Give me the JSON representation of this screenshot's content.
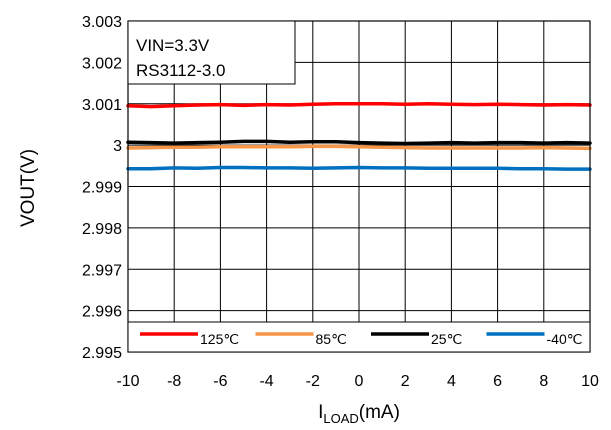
{
  "chart_data": {
    "type": "line",
    "xlabel": "I",
    "xlabel_sub": "LOAD",
    "xlabel_unit": "(mA)",
    "ylabel": "VOUT(V)",
    "xlim": [
      -10,
      10
    ],
    "ylim": [
      2.995,
      3.003
    ],
    "x_ticks": [
      -10,
      -8,
      -6,
      -4,
      -2,
      0,
      2,
      4,
      6,
      8,
      10
    ],
    "y_tick_values": [
      2.995,
      2.996,
      2.997,
      2.998,
      2.999,
      3.0,
      3.001,
      3.002,
      3.003
    ],
    "y_tick_labels": [
      "2.995",
      "2.996",
      "2.997",
      "2.998",
      "2.999",
      "3",
      "3.001",
      "3.002",
      "3.003"
    ],
    "grid": true,
    "annotation": [
      "VIN=3.3V",
      "RS3112-3.0"
    ],
    "legend_position": "bottom",
    "series": [
      {
        "name": "125℃",
        "color": "#ff0000",
        "x": [
          -10,
          -9,
          -8,
          -7,
          -6,
          -5,
          -4,
          -3,
          -2,
          -1,
          0,
          1,
          2,
          3,
          4,
          5,
          6,
          7,
          8,
          9,
          10
        ],
        "y": [
          3.00095,
          3.00093,
          3.00095,
          3.00097,
          3.00098,
          3.00096,
          3.00098,
          3.00097,
          3.00099,
          3.001,
          3.001,
          3.001,
          3.00099,
          3.001,
          3.00099,
          3.00098,
          3.00099,
          3.00098,
          3.00097,
          3.00098,
          3.00097
        ]
      },
      {
        "name": "85℃",
        "color": "#f79646",
        "x": [
          -10,
          -9,
          -8,
          -7,
          -6,
          -5,
          -4,
          -3,
          -2,
          -1,
          0,
          1,
          2,
          3,
          4,
          5,
          6,
          7,
          8,
          9,
          10
        ],
        "y": [
          2.99993,
          2.99994,
          2.99995,
          2.99995,
          2.99996,
          2.99996,
          2.99996,
          2.99996,
          2.99997,
          2.99997,
          2.99996,
          2.99995,
          2.99994,
          2.99993,
          2.99993,
          2.99993,
          2.99993,
          2.99993,
          2.99994,
          2.99993,
          2.99992
        ]
      },
      {
        "name": "25℃",
        "color": "#000000",
        "x": [
          -10,
          -9,
          -8,
          -7,
          -6,
          -5,
          -4,
          -3,
          -2,
          -1,
          0,
          1,
          2,
          3,
          4,
          5,
          6,
          7,
          8,
          9,
          10
        ],
        "y": [
          3.00007,
          3.00006,
          3.00005,
          3.00006,
          3.00007,
          3.00009,
          3.00009,
          3.00007,
          3.00008,
          3.00008,
          3.00006,
          3.00005,
          3.00004,
          3.00005,
          3.00006,
          3.00005,
          3.00006,
          3.00006,
          3.00005,
          3.00006,
          3.00005
        ]
      },
      {
        "name": "-40℃",
        "color": "#0070c0",
        "x": [
          -10,
          -9,
          -8,
          -7,
          -6,
          -5,
          -4,
          -3,
          -2,
          -1,
          0,
          1,
          2,
          3,
          4,
          5,
          6,
          7,
          8,
          9,
          10
        ],
        "y": [
          2.99943,
          2.99943,
          2.99945,
          2.99944,
          2.99946,
          2.99946,
          2.99945,
          2.99945,
          2.99944,
          2.99945,
          2.99946,
          2.99945,
          2.99945,
          2.99944,
          2.99944,
          2.99944,
          2.99944,
          2.99943,
          2.99943,
          2.99942,
          2.99942
        ]
      }
    ]
  }
}
